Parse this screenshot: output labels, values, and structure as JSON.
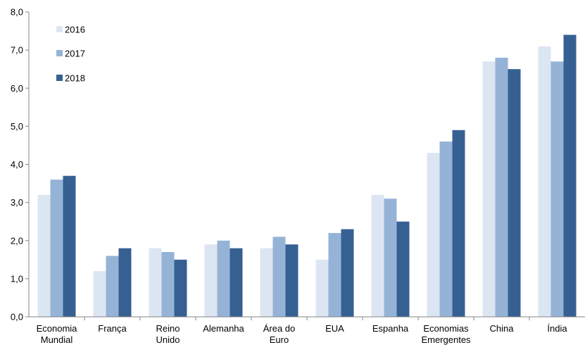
{
  "chart_data": {
    "type": "bar",
    "categories": [
      [
        "Economia",
        "Mundial"
      ],
      [
        "França"
      ],
      [
        "Reino",
        "Unido"
      ],
      [
        "Alemanha"
      ],
      [
        "Área do",
        "Euro"
      ],
      [
        "EUA"
      ],
      [
        "Espanha"
      ],
      [
        "Economias",
        "Emergentes"
      ],
      [
        "China"
      ],
      [
        "Índia"
      ]
    ],
    "series": [
      {
        "name": "2016",
        "color": "#dce6f2",
        "values": [
          3.2,
          1.2,
          1.8,
          1.9,
          1.8,
          1.5,
          3.2,
          4.3,
          6.7,
          7.1
        ]
      },
      {
        "name": "2017",
        "color": "#95b3d7",
        "values": [
          3.6,
          1.6,
          1.7,
          2.0,
          2.1,
          2.2,
          3.1,
          4.6,
          6.8,
          6.7
        ]
      },
      {
        "name": "2018",
        "color": "#376092",
        "values": [
          3.7,
          1.8,
          1.5,
          1.8,
          1.9,
          2.3,
          2.5,
          4.9,
          6.5,
          7.4
        ]
      }
    ],
    "y_ticks": [
      "0,0",
      "1,0",
      "2,0",
      "3,0",
      "4,0",
      "5,0",
      "6,0",
      "7,0",
      "8,0"
    ],
    "ylim": [
      0,
      8
    ],
    "grid": false,
    "legend_position": "top-left"
  }
}
